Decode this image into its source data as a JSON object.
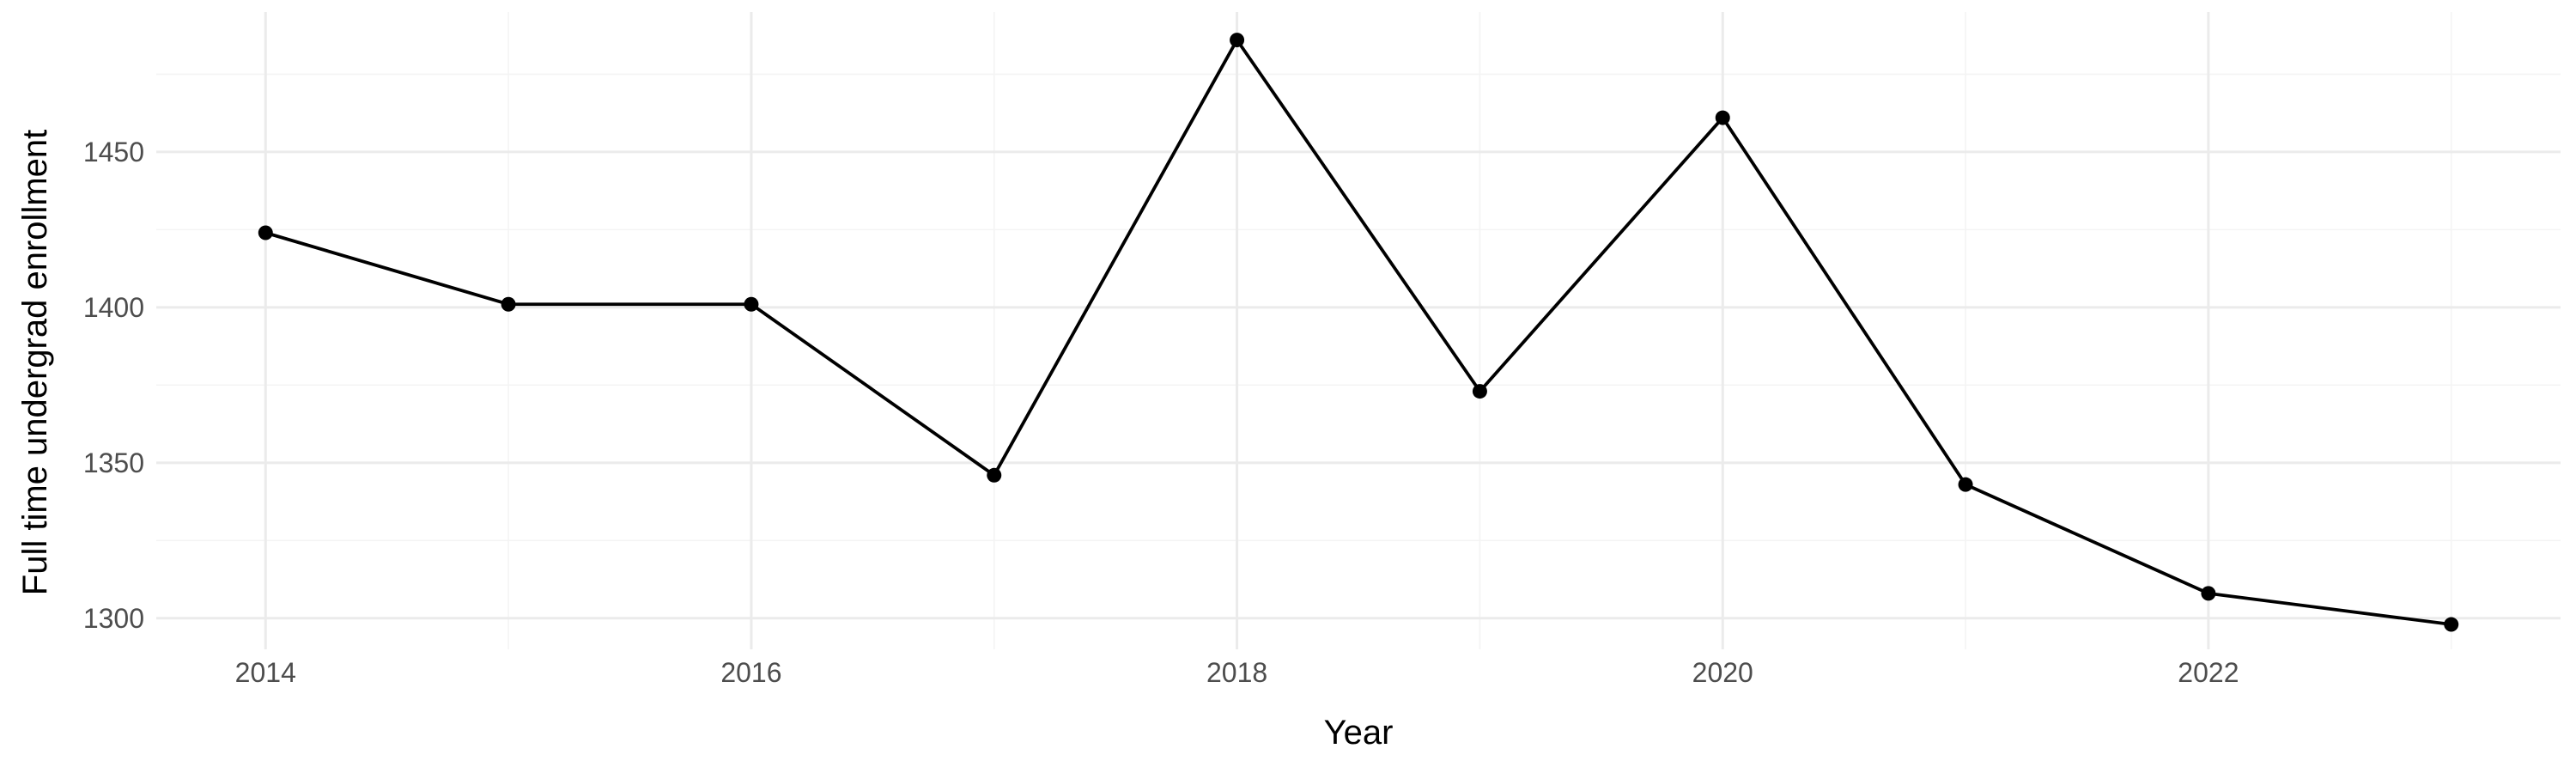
{
  "chart_data": {
    "type": "line",
    "title": "",
    "xlabel": "Year",
    "ylabel": "Full time undergrad enrollment",
    "x": [
      2014,
      2015,
      2016,
      2017,
      2018,
      2019,
      2020,
      2021,
      2022,
      2023
    ],
    "series": [
      {
        "values": [
          1424,
          1401,
          1401,
          1346,
          1486,
          1373,
          1461,
          1343,
          1308,
          1298
        ]
      }
    ],
    "xlim": [
      2013.55,
      2023.45
    ],
    "ylim": [
      1290,
      1495
    ],
    "x_ticks": [
      2014,
      2016,
      2018,
      2020,
      2022
    ],
    "x_tick_labels": [
      "2014",
      "2016",
      "2018",
      "2020",
      "2022"
    ],
    "y_ticks": [
      1300,
      1350,
      1400,
      1450
    ],
    "y_tick_labels": [
      "1300",
      "1350",
      "1400",
      "1450"
    ],
    "grid": true,
    "markers": true,
    "legend": "none",
    "colors": {
      "line": "#000000",
      "point": "#000000",
      "grid_major": "#ebebeb",
      "grid_minor": "#f4f4f4",
      "tick_text": "#4d4d4d",
      "background": "#ffffff"
    }
  }
}
